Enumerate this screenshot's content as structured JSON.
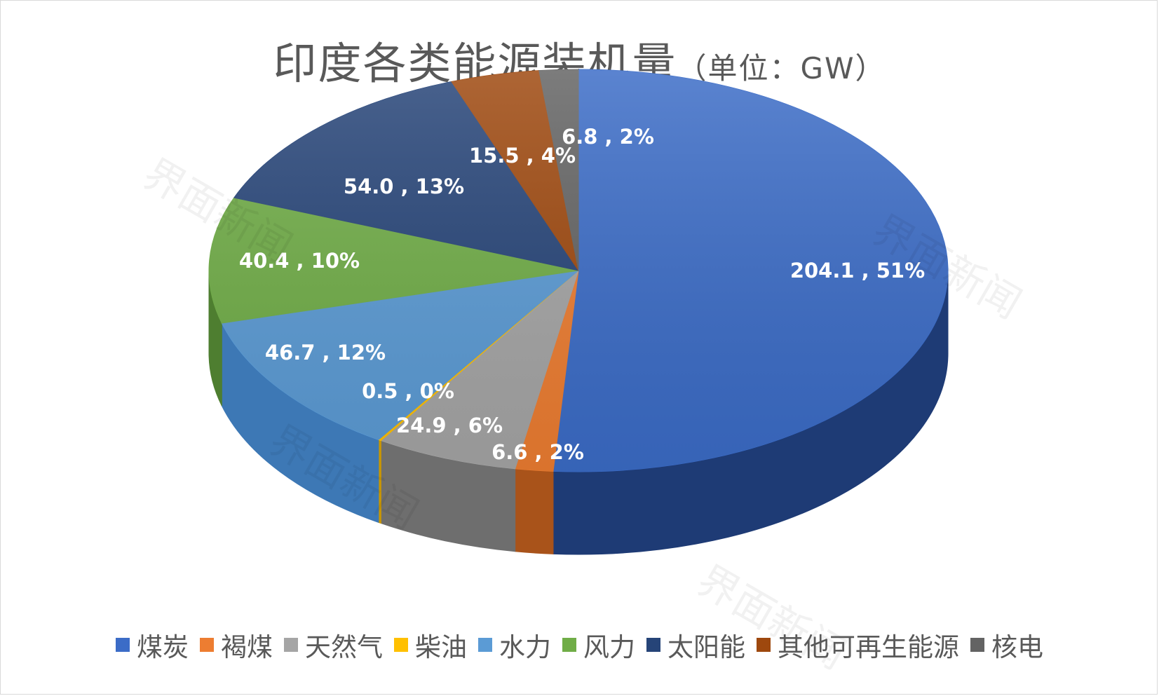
{
  "chart_data": {
    "type": "pie",
    "title": "印度各类能源装机量",
    "title_unit": "（单位：GW）",
    "style": "3d-pie",
    "legend_position": "bottom",
    "slices": [
      {
        "name": "煤炭",
        "value": 204.1,
        "percent": "51%",
        "label": "204.1 , 51%",
        "color": "#3b6cc7",
        "side_color": "#1e3b75"
      },
      {
        "name": "褐煤",
        "value": 6.6,
        "percent": "2%",
        "label": "6.6 , 2%",
        "color": "#ed7d31",
        "side_color": "#a9531a"
      },
      {
        "name": "天然气",
        "value": 24.9,
        "percent": "6%",
        "label": "24.9 , 6%",
        "color": "#a5a5a5",
        "side_color": "#6e6e6e"
      },
      {
        "name": "柴油",
        "value": 0.5,
        "percent": "0%",
        "label": "0.5 , 0%",
        "color": "#ffc000",
        "side_color": "#c99600"
      },
      {
        "name": "水力",
        "value": 46.7,
        "percent": "12%",
        "label": "46.7 , 12%",
        "color": "#5b9bd5",
        "side_color": "#3d78b5"
      },
      {
        "name": "风力",
        "value": 40.4,
        "percent": "10%",
        "label": "40.4 , 10%",
        "color": "#70ad47",
        "side_color": "#4e7e30"
      },
      {
        "name": "太阳能",
        "value": 54.0,
        "percent": "13%",
        "label": "54.0 , 13%",
        "color": "#264478",
        "side_color": "#17294a"
      },
      {
        "name": "其他可再生能源",
        "value": 15.5,
        "percent": "4%",
        "label": "15.5 , 4%",
        "color": "#9e480e",
        "side_color": "#6a2f08"
      },
      {
        "name": "核电",
        "value": 6.8,
        "percent": "2%",
        "label": "6.8 , 2%",
        "color": "#636363",
        "side_color": "#404040"
      }
    ]
  },
  "watermark": "界面新闻"
}
